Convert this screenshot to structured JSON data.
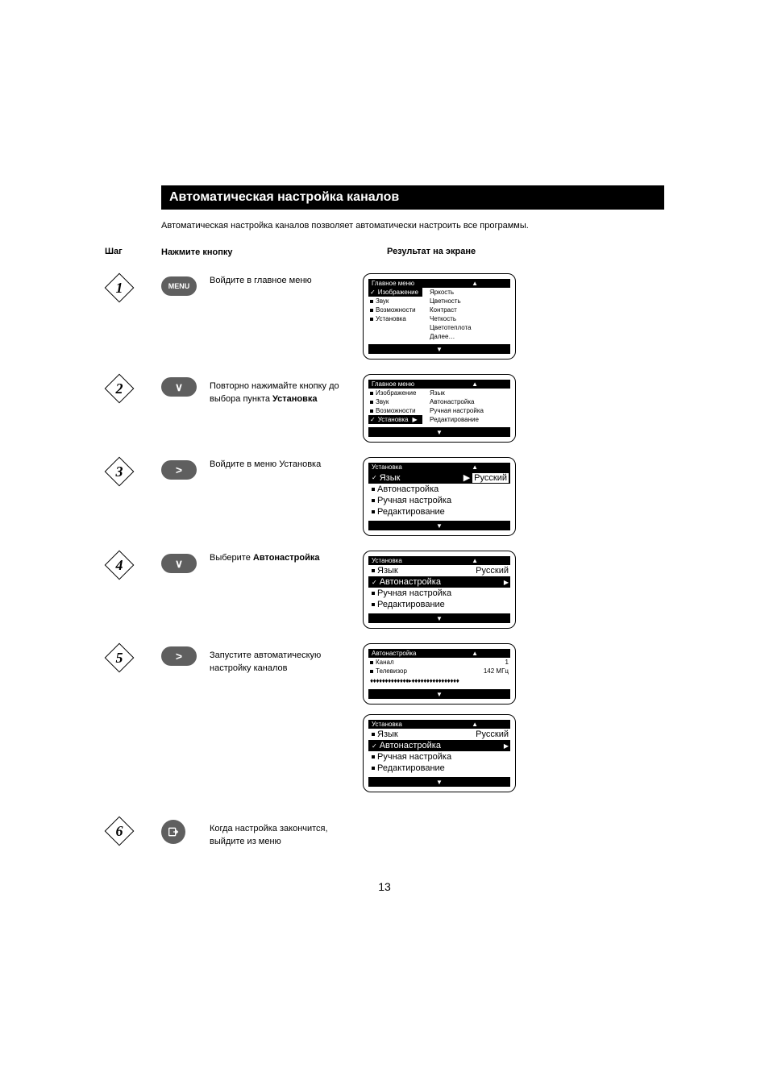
{
  "page": {
    "title": "Автоматическая настройка каналов",
    "intro": "Автоматическая настройка каналов позволяет автоматически настроить все программы.",
    "number": "13"
  },
  "headers": {
    "step": "Шаг",
    "press": "Нажмите кнопку",
    "result": "Результат на экране"
  },
  "steps": [
    {
      "n": "1",
      "btn_type": "menu",
      "btn_label": "MENU",
      "instr_html": "Войдите в главное меню"
    },
    {
      "n": "2",
      "btn_type": "down",
      "btn_label": "∨",
      "instr_html": "Повторно нажимайте кнопку до выбора пункта <b>Установка</b>"
    },
    {
      "n": "3",
      "btn_type": "right",
      "btn_label": ">",
      "instr_html": "Войдите в меню Установка"
    },
    {
      "n": "4",
      "btn_type": "down",
      "btn_label": "∨",
      "instr_html": "Выберите <b>Автонастройка</b>"
    },
    {
      "n": "5",
      "btn_type": "right",
      "btn_label": ">",
      "instr_html": "Запустите автоматическую настройку каналов"
    },
    {
      "n": "6",
      "btn_type": "exit",
      "btn_label": "",
      "instr_html": "Когда настройка закончится, выйдите из меню"
    }
  ],
  "screens": {
    "s1": {
      "title": "Главное меню",
      "left": [
        {
          "label": "Изображение",
          "sel": true
        },
        {
          "label": "Звук"
        },
        {
          "label": "Возможности"
        },
        {
          "label": "Установка"
        }
      ],
      "right": [
        "Яркость",
        "Цветность",
        "Контраст",
        "Четкость",
        "Цветотеплота",
        "Далее…"
      ]
    },
    "s2": {
      "title": "Главное меню",
      "left": [
        {
          "label": "Изображение"
        },
        {
          "label": "Звук"
        },
        {
          "label": "Возможности"
        },
        {
          "label": "Установка",
          "sel": true
        }
      ],
      "right": [
        "Язык",
        "Автонастройка",
        "Ручная настройка",
        "Редактирование"
      ]
    },
    "s3": {
      "title": "Установка",
      "items": [
        {
          "label": "Язык",
          "sel": true,
          "value": "Русский"
        },
        {
          "label": "Автонастройка"
        },
        {
          "label": "Ручная настройка"
        },
        {
          "label": "Редактирование"
        }
      ]
    },
    "s4": {
      "title": "Установка",
      "items": [
        {
          "label": "Язык",
          "value": "Русский"
        },
        {
          "label": "Автонастройка",
          "sel": true,
          "ptr": true
        },
        {
          "label": "Ручная настройка"
        },
        {
          "label": "Редактирование"
        }
      ]
    },
    "s5a": {
      "title": "Автонастройка",
      "rows": [
        {
          "label": "Канал",
          "value": "1"
        },
        {
          "label": "Телевизор",
          "value": "142 МГц"
        }
      ],
      "progress": "♦♦♦♦♦♦♦♦♦♦♦♦♦▸♦♦♦♦♦♦♦♦♦♦♦♦♦♦♦♦"
    },
    "s5b": {
      "title": "Установка",
      "items": [
        {
          "label": "Язык",
          "value": "Русский"
        },
        {
          "label": "Автонастройка",
          "sel": true,
          "ptr": true
        },
        {
          "label": "Ручная настройка"
        },
        {
          "label": "Редактирование"
        }
      ]
    }
  },
  "colors": {
    "background": "#ffffff",
    "text": "#000000",
    "banner_bg": "#000000",
    "button_bg": "#5f5f5f",
    "button_fg": "#ffffff"
  }
}
